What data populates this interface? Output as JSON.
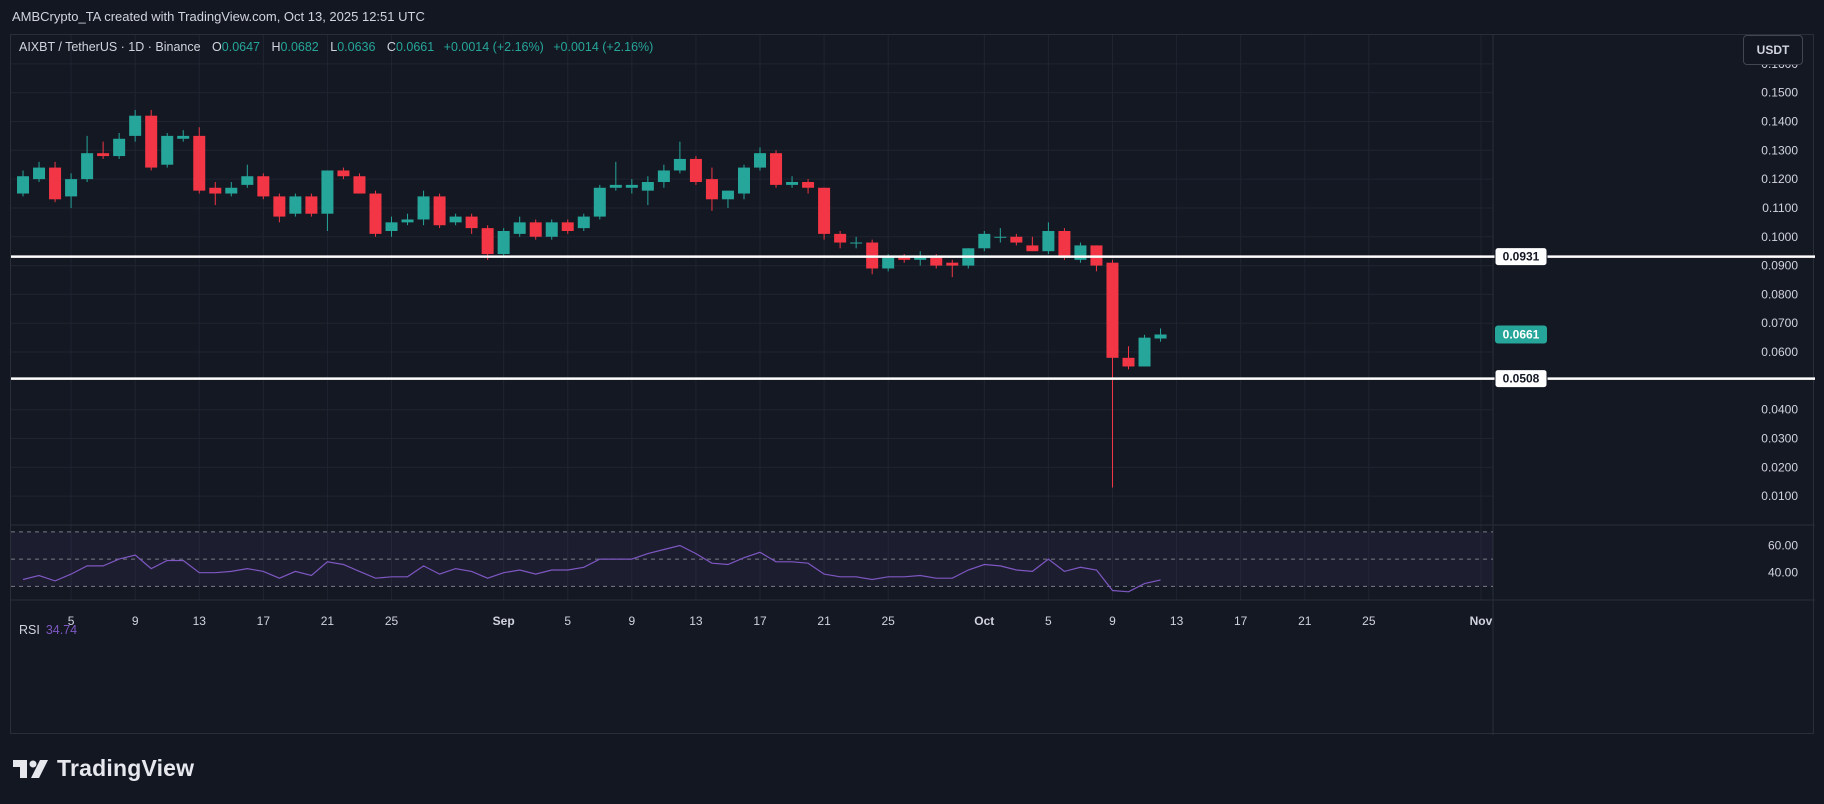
{
  "header": {
    "attribution": "AMBCrypto_TA created with TradingView.com, Oct 13, 2025 12:51 UTC"
  },
  "legend": {
    "symbol": "AIXBT / TetherUS · 1D · Binance",
    "open_label": "O",
    "open": "0.0647",
    "high_label": "H",
    "high": "0.0682",
    "low_label": "L",
    "low": "0.0636",
    "close_label": "C",
    "close": "0.0661",
    "change1": "+0.0014 (+2.16%)",
    "change2": "+0.0014 (+2.16%)"
  },
  "currency_button": "USDT",
  "rsi": {
    "label": "RSI",
    "value": "34.74"
  },
  "branding": {
    "name": "TradingView"
  },
  "colors": {
    "up": "#26a69a",
    "down": "#f23645",
    "rsi": "#7e57c2",
    "background": "#131722",
    "grid": "#1f2430",
    "level_line": "#ffffff"
  },
  "chart_data": [
    {
      "type": "candlestick",
      "ylim": [
        0.0,
        0.17
      ],
      "y_ticks": [
        "0.0100",
        "0.0200",
        "0.0300",
        "0.0400",
        "0.0600",
        "0.0700",
        "0.0800",
        "0.0900",
        "0.1000",
        "0.1100",
        "0.1200",
        "0.1300",
        "0.1400",
        "0.1500",
        "0.1600"
      ],
      "x_tick_labels": [
        "5",
        "9",
        "13",
        "17",
        "21",
        "25",
        "Sep",
        "5",
        "9",
        "13",
        "17",
        "21",
        "25",
        "Oct",
        "5",
        "9",
        "13",
        "17",
        "21",
        "25",
        "Nov"
      ],
      "x_tick_days": [
        4,
        8,
        12,
        16,
        20,
        24,
        31,
        35,
        39,
        43,
        47,
        51,
        55,
        61,
        65,
        69,
        73,
        77,
        81,
        85,
        92
      ],
      "x_day_range": [
        0.25,
        92.75
      ],
      "horizontal_levels": [
        {
          "value": 0.0931,
          "label": "0.0931"
        },
        {
          "value": 0.0508,
          "label": "0.0508"
        }
      ],
      "last_price": {
        "value": 0.0661,
        "label": "0.0661"
      },
      "grid": true,
      "candles": [
        {
          "o": 0.115,
          "h": 0.123,
          "l": 0.114,
          "c": 0.121
        },
        {
          "o": 0.12,
          "h": 0.126,
          "l": 0.119,
          "c": 0.124
        },
        {
          "o": 0.124,
          "h": 0.126,
          "l": 0.112,
          "c": 0.113
        },
        {
          "o": 0.114,
          "h": 0.122,
          "l": 0.11,
          "c": 0.12
        },
        {
          "o": 0.12,
          "h": 0.135,
          "l": 0.119,
          "c": 0.129
        },
        {
          "o": 0.129,
          "h": 0.133,
          "l": 0.127,
          "c": 0.128
        },
        {
          "o": 0.128,
          "h": 0.136,
          "l": 0.127,
          "c": 0.134
        },
        {
          "o": 0.135,
          "h": 0.144,
          "l": 0.133,
          "c": 0.142
        },
        {
          "o": 0.142,
          "h": 0.144,
          "l": 0.123,
          "c": 0.124
        },
        {
          "o": 0.125,
          "h": 0.136,
          "l": 0.124,
          "c": 0.135
        },
        {
          "o": 0.134,
          "h": 0.137,
          "l": 0.133,
          "c": 0.135
        },
        {
          "o": 0.135,
          "h": 0.138,
          "l": 0.115,
          "c": 0.116
        },
        {
          "o": 0.117,
          "h": 0.119,
          "l": 0.111,
          "c": 0.115
        },
        {
          "o": 0.115,
          "h": 0.119,
          "l": 0.114,
          "c": 0.117
        },
        {
          "o": 0.118,
          "h": 0.125,
          "l": 0.117,
          "c": 0.121
        },
        {
          "o": 0.121,
          "h": 0.122,
          "l": 0.113,
          "c": 0.114
        },
        {
          "o": 0.114,
          "h": 0.115,
          "l": 0.105,
          "c": 0.107
        },
        {
          "o": 0.108,
          "h": 0.115,
          "l": 0.107,
          "c": 0.114
        },
        {
          "o": 0.114,
          "h": 0.115,
          "l": 0.107,
          "c": 0.108
        },
        {
          "o": 0.108,
          "h": 0.123,
          "l": 0.102,
          "c": 0.123
        },
        {
          "o": 0.123,
          "h": 0.124,
          "l": 0.12,
          "c": 0.121
        },
        {
          "o": 0.121,
          "h": 0.122,
          "l": 0.115,
          "c": 0.115
        },
        {
          "o": 0.115,
          "h": 0.116,
          "l": 0.1,
          "c": 0.101
        },
        {
          "o": 0.102,
          "h": 0.107,
          "l": 0.1,
          "c": 0.105
        },
        {
          "o": 0.105,
          "h": 0.108,
          "l": 0.104,
          "c": 0.106
        },
        {
          "o": 0.106,
          "h": 0.116,
          "l": 0.104,
          "c": 0.114
        },
        {
          "o": 0.114,
          "h": 0.115,
          "l": 0.103,
          "c": 0.104
        },
        {
          "o": 0.105,
          "h": 0.108,
          "l": 0.104,
          "c": 0.107
        },
        {
          "o": 0.107,
          "h": 0.108,
          "l": 0.101,
          "c": 0.103
        },
        {
          "o": 0.103,
          "h": 0.104,
          "l": 0.092,
          "c": 0.094
        },
        {
          "o": 0.094,
          "h": 0.103,
          "l": 0.093,
          "c": 0.102
        },
        {
          "o": 0.101,
          "h": 0.107,
          "l": 0.1,
          "c": 0.105
        },
        {
          "o": 0.105,
          "h": 0.106,
          "l": 0.099,
          "c": 0.1
        },
        {
          "o": 0.1,
          "h": 0.106,
          "l": 0.099,
          "c": 0.105
        },
        {
          "o": 0.105,
          "h": 0.106,
          "l": 0.101,
          "c": 0.102
        },
        {
          "o": 0.103,
          "h": 0.108,
          "l": 0.102,
          "c": 0.107
        },
        {
          "o": 0.107,
          "h": 0.118,
          "l": 0.106,
          "c": 0.117
        },
        {
          "o": 0.117,
          "h": 0.126,
          "l": 0.116,
          "c": 0.118
        },
        {
          "o": 0.117,
          "h": 0.12,
          "l": 0.115,
          "c": 0.118
        },
        {
          "o": 0.116,
          "h": 0.121,
          "l": 0.111,
          "c": 0.119
        },
        {
          "o": 0.119,
          "h": 0.125,
          "l": 0.117,
          "c": 0.123
        },
        {
          "o": 0.123,
          "h": 0.133,
          "l": 0.122,
          "c": 0.127
        },
        {
          "o": 0.127,
          "h": 0.128,
          "l": 0.118,
          "c": 0.119
        },
        {
          "o": 0.12,
          "h": 0.124,
          "l": 0.109,
          "c": 0.113
        },
        {
          "o": 0.113,
          "h": 0.116,
          "l": 0.11,
          "c": 0.116
        },
        {
          "o": 0.115,
          "h": 0.125,
          "l": 0.113,
          "c": 0.124
        },
        {
          "o": 0.124,
          "h": 0.131,
          "l": 0.123,
          "c": 0.129
        },
        {
          "o": 0.129,
          "h": 0.13,
          "l": 0.117,
          "c": 0.118
        },
        {
          "o": 0.118,
          "h": 0.121,
          "l": 0.117,
          "c": 0.119
        },
        {
          "o": 0.119,
          "h": 0.12,
          "l": 0.115,
          "c": 0.117
        },
        {
          "o": 0.117,
          "h": 0.117,
          "l": 0.099,
          "c": 0.101
        },
        {
          "o": 0.101,
          "h": 0.102,
          "l": 0.096,
          "c": 0.098
        },
        {
          "o": 0.098,
          "h": 0.1,
          "l": 0.096,
          "c": 0.098
        },
        {
          "o": 0.098,
          "h": 0.099,
          "l": 0.087,
          "c": 0.089
        },
        {
          "o": 0.089,
          "h": 0.094,
          "l": 0.088,
          "c": 0.093
        },
        {
          "o": 0.093,
          "h": 0.094,
          "l": 0.091,
          "c": 0.092
        },
        {
          "o": 0.092,
          "h": 0.095,
          "l": 0.09,
          "c": 0.093
        },
        {
          "o": 0.093,
          "h": 0.094,
          "l": 0.089,
          "c": 0.09
        },
        {
          "o": 0.091,
          "h": 0.092,
          "l": 0.086,
          "c": 0.09
        },
        {
          "o": 0.09,
          "h": 0.096,
          "l": 0.089,
          "c": 0.096
        },
        {
          "o": 0.096,
          "h": 0.102,
          "l": 0.095,
          "c": 0.101
        },
        {
          "o": 0.1,
          "h": 0.103,
          "l": 0.098,
          "c": 0.1
        },
        {
          "o": 0.1,
          "h": 0.101,
          "l": 0.097,
          "c": 0.098
        },
        {
          "o": 0.097,
          "h": 0.1,
          "l": 0.095,
          "c": 0.095
        },
        {
          "o": 0.095,
          "h": 0.105,
          "l": 0.094,
          "c": 0.102
        },
        {
          "o": 0.102,
          "h": 0.103,
          "l": 0.092,
          "c": 0.093
        },
        {
          "o": 0.092,
          "h": 0.098,
          "l": 0.091,
          "c": 0.097
        },
        {
          "o": 0.097,
          "h": 0.097,
          "l": 0.088,
          "c": 0.09
        },
        {
          "o": 0.091,
          "h": 0.092,
          "l": 0.013,
          "c": 0.058
        },
        {
          "o": 0.058,
          "h": 0.062,
          "l": 0.054,
          "c": 0.055
        },
        {
          "o": 0.055,
          "h": 0.066,
          "l": 0.055,
          "c": 0.065
        },
        {
          "o": 0.0647,
          "h": 0.0682,
          "l": 0.0636,
          "c": 0.0661
        }
      ]
    },
    {
      "type": "line",
      "name": "RSI",
      "ylim": [
        20,
        75
      ],
      "levels": [
        70,
        50,
        30
      ],
      "y_ticks": [
        "60.00",
        "40.00"
      ],
      "values": [
        35,
        38,
        34,
        39,
        45,
        45,
        50,
        53,
        43,
        49,
        49,
        40,
        40,
        41,
        43,
        41,
        36,
        41,
        38,
        48,
        46,
        41,
        36,
        37,
        37,
        45,
        39,
        43,
        41,
        36,
        40,
        42,
        39,
        42,
        42,
        44,
        50,
        50,
        50,
        54,
        57,
        60,
        54,
        47,
        46,
        51,
        55,
        48,
        48,
        47,
        39,
        37,
        37,
        35,
        37,
        37,
        38,
        36,
        36,
        42,
        46,
        45,
        42,
        41,
        50,
        41,
        44,
        42,
        27,
        26,
        32,
        34.74
      ]
    }
  ]
}
